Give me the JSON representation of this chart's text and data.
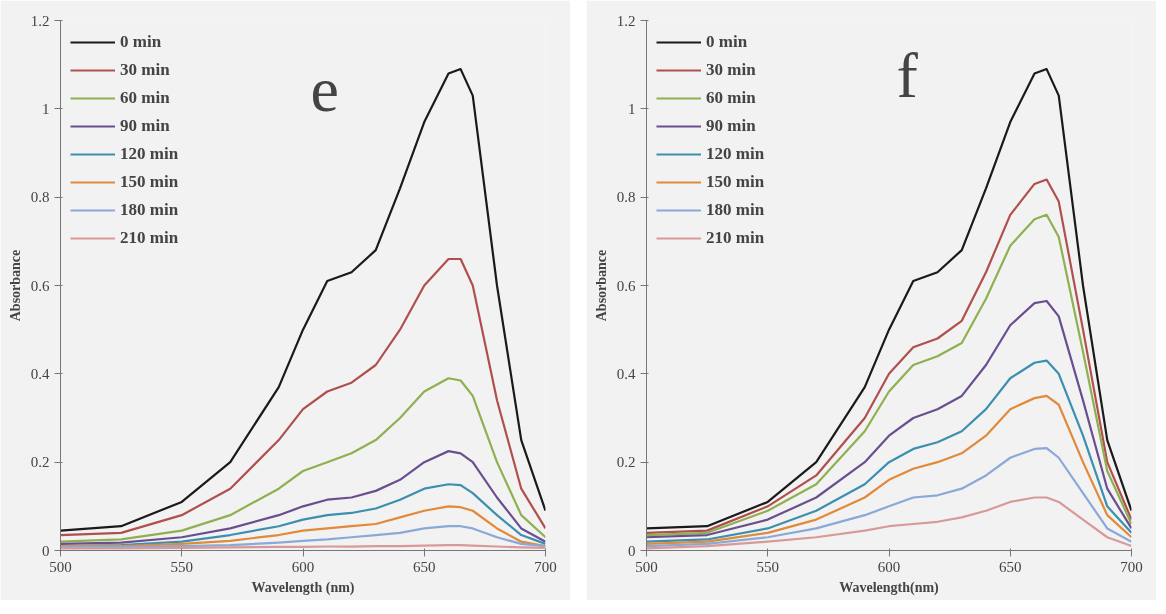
{
  "chart_data": [
    {
      "type": "line",
      "xlabel": "Wavelength (nm)",
      "ylabel": "Absorbance",
      "annotations": [
        "e"
      ],
      "xlim": [
        500,
        700
      ],
      "ylim": [
        0,
        1.2
      ],
      "xticks": [
        500,
        550,
        600,
        650,
        700
      ],
      "yticks": [
        0,
        0.2,
        0.4,
        0.6,
        0.8,
        1,
        1.2
      ],
      "grid": false,
      "legend": "top left",
      "marker": "none",
      "line_style": "solid",
      "x": [
        500,
        525,
        550,
        570,
        590,
        600,
        610,
        620,
        630,
        640,
        650,
        660,
        665,
        670,
        680,
        690,
        700
      ],
      "series": [
        {
          "name": "0 min",
          "color": "#1a1a1a",
          "values": [
            0.045,
            0.055,
            0.11,
            0.2,
            0.37,
            0.5,
            0.61,
            0.63,
            0.68,
            0.82,
            0.97,
            1.08,
            1.09,
            1.03,
            0.6,
            0.25,
            0.09
          ]
        },
        {
          "name": "30 min",
          "color": "#b0504e",
          "values": [
            0.035,
            0.04,
            0.08,
            0.14,
            0.25,
            0.32,
            0.36,
            0.38,
            0.42,
            0.5,
            0.6,
            0.66,
            0.66,
            0.6,
            0.34,
            0.14,
            0.05
          ]
        },
        {
          "name": "60 min",
          "color": "#8fb050",
          "values": [
            0.02,
            0.025,
            0.045,
            0.08,
            0.14,
            0.18,
            0.2,
            0.22,
            0.25,
            0.3,
            0.36,
            0.39,
            0.385,
            0.35,
            0.2,
            0.08,
            0.03
          ]
        },
        {
          "name": "90 min",
          "color": "#6a4f90",
          "values": [
            0.015,
            0.018,
            0.03,
            0.05,
            0.08,
            0.1,
            0.115,
            0.12,
            0.135,
            0.16,
            0.2,
            0.225,
            0.22,
            0.2,
            0.12,
            0.05,
            0.02
          ]
        },
        {
          "name": "120 min",
          "color": "#3d8fb0",
          "values": [
            0.01,
            0.012,
            0.02,
            0.035,
            0.055,
            0.07,
            0.08,
            0.085,
            0.095,
            0.115,
            0.14,
            0.15,
            0.148,
            0.13,
            0.08,
            0.035,
            0.015
          ]
        },
        {
          "name": "150 min",
          "color": "#e08a3a",
          "values": [
            0.01,
            0.01,
            0.015,
            0.022,
            0.035,
            0.045,
            0.05,
            0.055,
            0.06,
            0.075,
            0.09,
            0.1,
            0.098,
            0.09,
            0.05,
            0.02,
            0.01
          ]
        },
        {
          "name": "180 min",
          "color": "#8aa8d8",
          "values": [
            0.008,
            0.008,
            0.01,
            0.012,
            0.018,
            0.022,
            0.025,
            0.03,
            0.035,
            0.04,
            0.05,
            0.055,
            0.055,
            0.05,
            0.03,
            0.015,
            0.01
          ]
        },
        {
          "name": "210 min",
          "color": "#d89a98",
          "values": [
            0.005,
            0.005,
            0.006,
            0.007,
            0.008,
            0.008,
            0.009,
            0.009,
            0.01,
            0.01,
            0.011,
            0.012,
            0.012,
            0.011,
            0.009,
            0.007,
            0.006
          ]
        }
      ]
    },
    {
      "type": "line",
      "xlabel": "Wavelength(nm)",
      "ylabel": "Absorbance",
      "annotations": [
        "f"
      ],
      "xlim": [
        500,
        700
      ],
      "ylim": [
        0,
        1.2
      ],
      "xticks": [
        500,
        550,
        600,
        650,
        700
      ],
      "yticks": [
        0,
        0.2,
        0.4,
        0.6,
        0.8,
        1,
        1.2
      ],
      "grid": false,
      "legend": "top left",
      "marker": "none",
      "line_style": "solid",
      "x": [
        500,
        525,
        550,
        570,
        590,
        600,
        610,
        620,
        630,
        640,
        650,
        660,
        665,
        670,
        680,
        690,
        700
      ],
      "series": [
        {
          "name": "0 min",
          "color": "#1a1a1a",
          "values": [
            0.05,
            0.055,
            0.11,
            0.2,
            0.37,
            0.5,
            0.61,
            0.63,
            0.68,
            0.82,
            0.97,
            1.08,
            1.09,
            1.03,
            0.6,
            0.25,
            0.09
          ]
        },
        {
          "name": "30 min",
          "color": "#b0504e",
          "values": [
            0.04,
            0.045,
            0.1,
            0.17,
            0.3,
            0.4,
            0.46,
            0.48,
            0.52,
            0.63,
            0.76,
            0.83,
            0.84,
            0.79,
            0.5,
            0.2,
            0.07
          ]
        },
        {
          "name": "60 min",
          "color": "#8fb050",
          "values": [
            0.035,
            0.04,
            0.09,
            0.15,
            0.27,
            0.36,
            0.42,
            0.44,
            0.47,
            0.57,
            0.69,
            0.75,
            0.76,
            0.71,
            0.45,
            0.18,
            0.06
          ]
        },
        {
          "name": "90 min",
          "color": "#6a4f90",
          "values": [
            0.03,
            0.035,
            0.07,
            0.12,
            0.2,
            0.26,
            0.3,
            0.32,
            0.35,
            0.42,
            0.51,
            0.56,
            0.565,
            0.53,
            0.34,
            0.14,
            0.05
          ]
        },
        {
          "name": "120 min",
          "color": "#3d8fb0",
          "values": [
            0.02,
            0.025,
            0.05,
            0.09,
            0.15,
            0.2,
            0.23,
            0.245,
            0.27,
            0.32,
            0.39,
            0.425,
            0.43,
            0.4,
            0.26,
            0.1,
            0.04
          ]
        },
        {
          "name": "150 min",
          "color": "#e08a3a",
          "values": [
            0.015,
            0.02,
            0.04,
            0.07,
            0.12,
            0.16,
            0.185,
            0.2,
            0.22,
            0.26,
            0.32,
            0.345,
            0.35,
            0.33,
            0.2,
            0.08,
            0.03
          ]
        },
        {
          "name": "180 min",
          "color": "#8aa8d8",
          "values": [
            0.01,
            0.015,
            0.03,
            0.05,
            0.08,
            0.1,
            0.12,
            0.125,
            0.14,
            0.17,
            0.21,
            0.23,
            0.232,
            0.21,
            0.13,
            0.05,
            0.02
          ]
        },
        {
          "name": "210 min",
          "color": "#d89a98",
          "values": [
            0.005,
            0.01,
            0.02,
            0.03,
            0.045,
            0.055,
            0.06,
            0.065,
            0.075,
            0.09,
            0.11,
            0.12,
            0.12,
            0.11,
            0.07,
            0.03,
            0.01
          ]
        }
      ]
    }
  ]
}
